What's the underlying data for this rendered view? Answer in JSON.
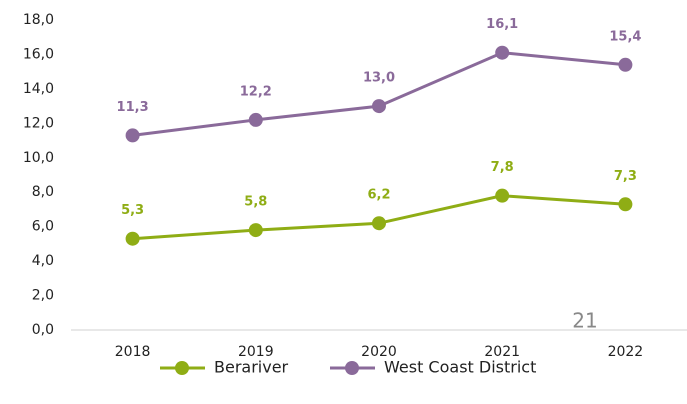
{
  "chart_data": {
    "type": "line",
    "categories": [
      "2018",
      "2019",
      "2020",
      "2021",
      "2022"
    ],
    "series": [
      {
        "name": "Berariver",
        "color": "#8fad15",
        "values": [
          5.3,
          5.8,
          6.2,
          7.8,
          7.3
        ],
        "value_labels": [
          "5,3",
          "5,8",
          "6,2",
          "7,8",
          "7,3"
        ]
      },
      {
        "name": "West Coast District",
        "color": "#8a6a9a",
        "values": [
          11.3,
          12.2,
          13.0,
          16.1,
          15.4
        ],
        "value_labels": [
          "11,3",
          "12,2",
          "13,0",
          "16,1",
          "15,4"
        ]
      }
    ],
    "ylim": [
      0,
      18
    ],
    "yticks": [
      {
        "value": 0,
        "label": "0,0"
      },
      {
        "value": 2,
        "label": "2,0"
      },
      {
        "value": 4,
        "label": "4,0"
      },
      {
        "value": 6,
        "label": "6,0"
      },
      {
        "value": 8,
        "label": "8,0"
      },
      {
        "value": 10,
        "label": "10,0"
      },
      {
        "value": 12,
        "label": "12,0"
      },
      {
        "value": 14,
        "label": "14,0"
      },
      {
        "value": 16,
        "label": "16,0"
      },
      {
        "value": 18,
        "label": "18,0"
      }
    ],
    "annotation": "21",
    "grid": false,
    "legend": "bottom"
  }
}
